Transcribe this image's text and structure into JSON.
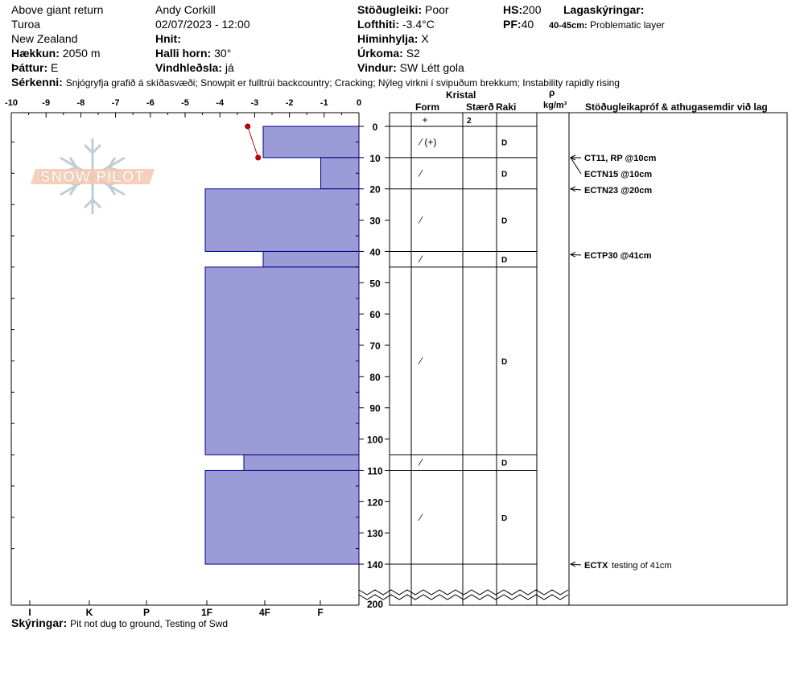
{
  "header": {
    "location": "Above giant return",
    "area": "Turoa",
    "country": "New Zealand",
    "elevation_label": "Hækkun:",
    "elevation_value": "2050 m",
    "aspect_label": "Þáttur:",
    "aspect_value": "E",
    "observer": "Andy Corkill",
    "datetime": "02/07/2023 - 12:00",
    "coords_label": "Hnit:",
    "slope_label": "Halli horn:",
    "slope_value": "30°",
    "wind_loading_label": "Vindhleðsla:",
    "wind_loading_value": "já",
    "stability_label": "Stöðugleiki:",
    "stability_value": "Poor",
    "air_temp_label": "Lofthiti:",
    "air_temp_value": "-3.4°C",
    "sky_label": "Himinhylja:",
    "sky_value": "X",
    "precip_label": "Úrkoma:",
    "precip_value": "S2",
    "wind_label": "Vindur:",
    "wind_value": "SW  Létt gola",
    "hs_label": "HS:",
    "hs_value": "200",
    "pf_label": "PF:",
    "pf_value": "40",
    "layers_label": "Lagaskýringar:",
    "layer_note_range": "40-45cm:",
    "layer_note_text": "Problematic layer",
    "features_label": "Sérkenni:",
    "features_text": "Snjógryfja grafið á skíðasvæði;  Snowpit er fulltrúi backcountry;  Cracking;  Nýleg virkni í svipuðum brekkum;  Instability rapidly rising",
    "notes_label": "Skýringar:",
    "notes_text": "Pit not dug to ground, Testing of Swd"
  },
  "columns": {
    "crystal": "Kristal",
    "form": "Form",
    "size": "Stærð",
    "moisture": "Raki",
    "rho": "ρ",
    "density_unit": "kg/m³",
    "stability_tests": "Stöðugleikapróf & athugasemdir við lag"
  },
  "colors": {
    "hardness_fill": "#9b9bd8",
    "hardness_stroke": "#00008b",
    "temp_line": "#cc0000",
    "logo_text": "#f3c8b0",
    "logo_flake": "#c0ccd6"
  },
  "chart_data": {
    "type": "snow_profile",
    "temperature_axis": {
      "ticks": [
        "-10",
        "-9",
        "-8",
        "-7",
        "-6",
        "-5",
        "-4",
        "-3",
        "-2",
        "-1",
        "0"
      ],
      "range": [
        -10,
        0
      ]
    },
    "depth_axis": {
      "ticks": [
        "0",
        "10",
        "20",
        "30",
        "40",
        "50",
        "60",
        "70",
        "80",
        "90",
        "100",
        "110",
        "120",
        "130",
        "140",
        "200"
      ],
      "range": [
        0,
        200
      ],
      "break_label": "200"
    },
    "hardness_axis": {
      "labels": [
        "I",
        "K",
        "P",
        "1F",
        "4F",
        "F"
      ]
    },
    "hardness_layers": [
      {
        "top": 0,
        "bottom": 10,
        "hardness": "4F-"
      },
      {
        "top": 10,
        "bottom": 20,
        "hardness": "F+"
      },
      {
        "top": 20,
        "bottom": 40,
        "hardness": "1F-"
      },
      {
        "top": 40,
        "bottom": 45,
        "hardness": "4F-"
      },
      {
        "top": 45,
        "bottom": 105,
        "hardness": "1F-"
      },
      {
        "top": 105,
        "bottom": 110,
        "hardness": "4F+"
      },
      {
        "top": 110,
        "bottom": 140,
        "hardness": "1F-"
      }
    ],
    "temperature_profile": [
      {
        "depth": 0,
        "temp": -3.2
      },
      {
        "depth": 10,
        "temp": -2.9
      }
    ],
    "layers": [
      {
        "top": 0,
        "bottom": 10,
        "form": "⁄ (+)",
        "moisture": "D"
      },
      {
        "top": 10,
        "bottom": 20,
        "form": "⁄",
        "moisture": "D"
      },
      {
        "top": 20,
        "bottom": 40,
        "form": "⁄",
        "moisture": "D"
      },
      {
        "top": 40,
        "bottom": 45,
        "form": "⁄",
        "moisture": "D"
      },
      {
        "top": 45,
        "bottom": 105,
        "form": "⁄",
        "moisture": "D"
      },
      {
        "top": 105,
        "bottom": 110,
        "form": "⁄",
        "moisture": "D"
      },
      {
        "top": 110,
        "bottom": 140,
        "form": "⁄",
        "moisture": "D"
      }
    ],
    "surface_row": {
      "form": "+",
      "size": "2"
    },
    "stability_tests": [
      {
        "depth": 10,
        "text": "CT11, RP @10cm"
      },
      {
        "depth": 10,
        "text": "ECTN15 @10cm"
      },
      {
        "depth": 20,
        "text": "ECTN23 @20cm"
      },
      {
        "depth": 41,
        "text": "ECTP30 @41cm"
      },
      {
        "depth": 140,
        "text": "ECTX",
        "note": "testing of 41cm"
      }
    ]
  },
  "logo": {
    "text": "SNOW PILOT"
  }
}
